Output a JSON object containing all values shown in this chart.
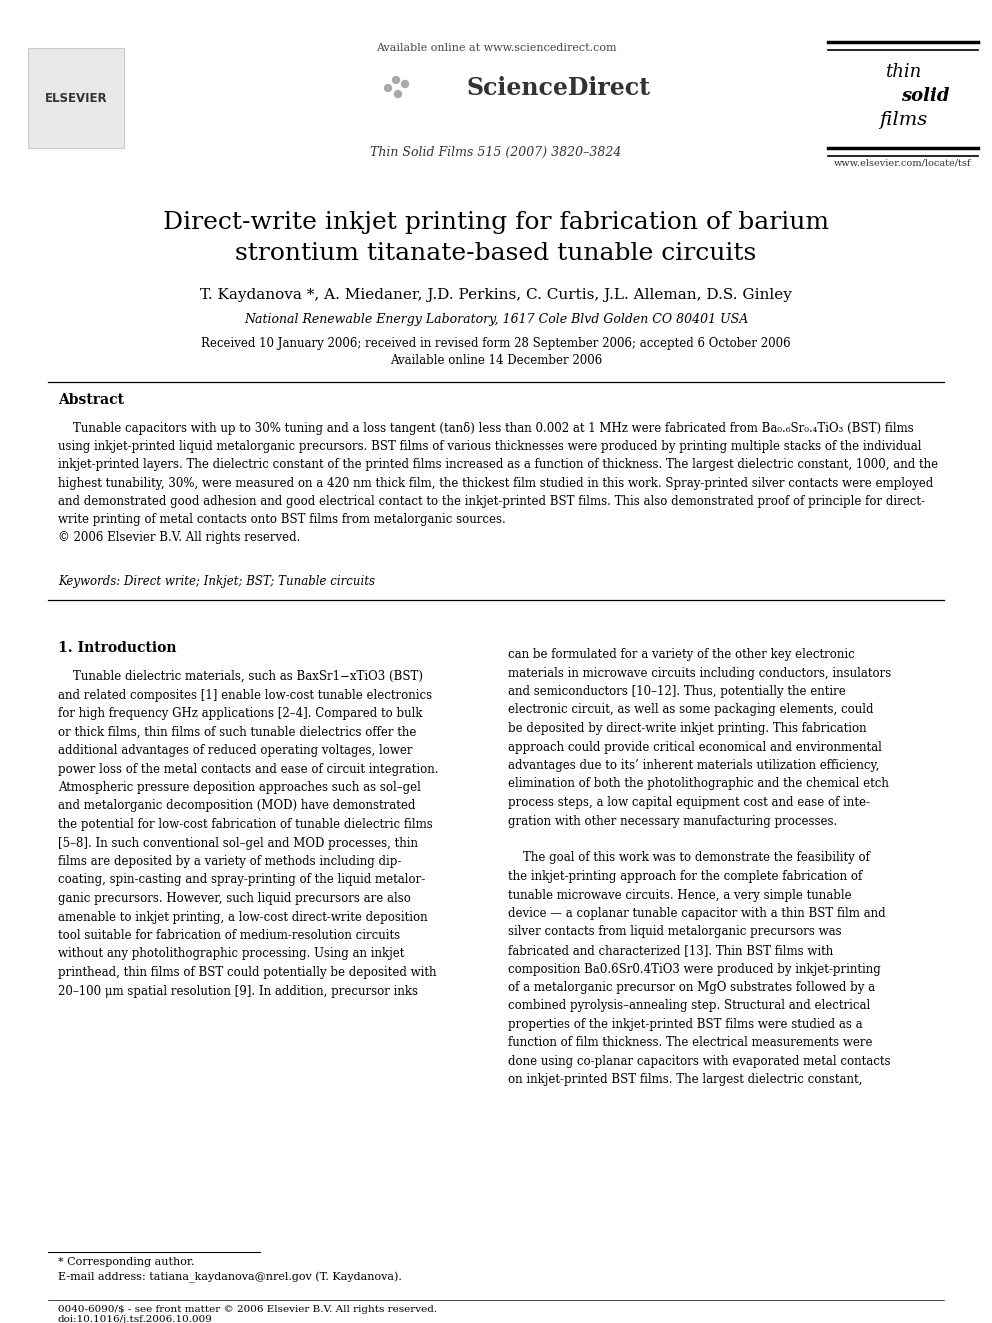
{
  "bg_color": "#ffffff",
  "header_available_online": "Available online at www.sciencedirect.com",
  "header_journal": "Thin Solid Films 515 (2007) 3820–3824",
  "title_line1": "Direct-write inkjet printing for fabrication of barium",
  "title_line2": "strontium titanate-based tunable circuits",
  "authors": "T. Kaydanova *, A. Miedaner, J.D. Perkins, C. Curtis, J.L. Alleman, D.S. Ginley",
  "affiliation": "National Renewable Energy Laboratory, 1617 Cole Blvd Golden CO 80401 USA",
  "received": "Received 10 January 2006; received in revised form 28 September 2006; accepted 6 October 2006",
  "available_online": "Available online 14 December 2006",
  "abstract_title": "Abstract",
  "keywords": "Keywords: Direct write; Inkjet; BST; Tunable circuits",
  "section1_title": "1. Introduction",
  "footnote_corresp": "* Corresponding author.",
  "footnote_email": "E-mail address: tatiana_kaydanova@nrel.gov (T. Kaydanova).",
  "bottom_bar1": "0040-6090/$ - see front matter © 2006 Elsevier B.V. All rights reserved.",
  "bottom_bar2": "doi:10.1016/j.tsf.2006.10.009",
  "elsevier_label": "ELSEVIER",
  "sciencedirect_label": "ScienceDirect",
  "tsf_line1": "thin",
  "tsf_line2": "solid",
  "tsf_line3": "films",
  "tsf_url": "www.elsevier.com/locate/tsf"
}
